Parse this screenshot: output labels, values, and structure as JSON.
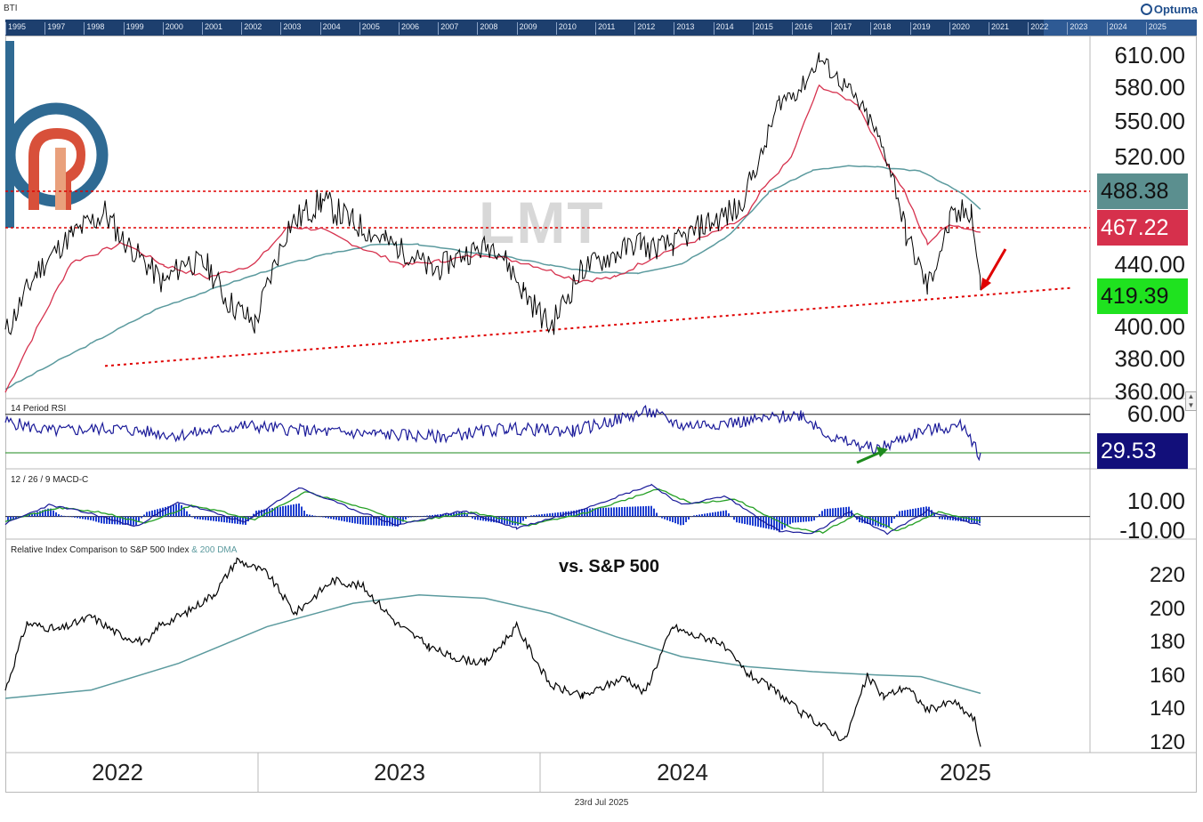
{
  "symbol": "BTI",
  "brand": "Optuma",
  "overview_years": [
    "1995",
    "1997",
    "1998",
    "1999",
    "2000",
    "2001",
    "2002",
    "2003",
    "2004",
    "2005",
    "2006",
    "2007",
    "2008",
    "2009",
    "2010",
    "2011",
    "2012",
    "2013",
    "2014",
    "2015",
    "2016",
    "2017",
    "2018",
    "2019",
    "2020",
    "2021",
    "2022",
    "2023",
    "2024",
    "2025"
  ],
  "watermark": "LMT",
  "annotation": "vs. S&P 500",
  "date": "23rd Jul 2025",
  "colors": {
    "price": "#000000",
    "sma_fast": "#d6324e",
    "sma_slow": "#5b9a9e",
    "resistance": "#e00000",
    "rsi": "#1a1a99",
    "macd_hist": "#1f3fd1",
    "macd_signal": "#25a025",
    "arrow_red": "#e00000",
    "arrow_green": "#1e8a1e",
    "box_teal": "#5b8f8f",
    "box_red": "#d6304c",
    "box_green": "#1fe21f",
    "box_navy": "#120f7a"
  },
  "x_labels": [
    "2022",
    "2023",
    "2024",
    "2025"
  ],
  "chart_data": [
    {
      "type": "line",
      "panel": "price",
      "title": "",
      "ylim": [
        360,
        620
      ],
      "y_ticks": [
        "360.00",
        "380.00",
        "400.00",
        "440.00",
        "520.00",
        "550.00",
        "580.00",
        "610.00"
      ],
      "x_start": "2021-11-01",
      "x_end": "2025-07-23",
      "series": [
        {
          "name": "price",
          "x": [
            "2021-11-01",
            "2021-12-15",
            "2022-02-01",
            "2022-03-20",
            "2022-04-15",
            "2022-06-10",
            "2022-07-10",
            "2022-08-10",
            "2022-09-05",
            "2022-10-15",
            "2022-12-01",
            "2023-01-15",
            "2023-03-01",
            "2023-04-15",
            "2023-05-25",
            "2023-06-20",
            "2023-08-01",
            "2023-09-15",
            "2023-10-25",
            "2023-12-01",
            "2024-01-15",
            "2024-03-01",
            "2024-04-05",
            "2024-04-15",
            "2024-05-20",
            "2024-07-01",
            "2024-07-20",
            "2024-08-20",
            "2024-09-20",
            "2024-10-15",
            "2024-11-15",
            "2024-12-10",
            "2025-01-20",
            "2025-02-20",
            "2025-03-15",
            "2025-04-10",
            "2025-05-10",
            "2025-06-10",
            "2025-07-10",
            "2025-07-23"
          ],
          "y": [
            396,
            436,
            462,
            476,
            458,
            428,
            443,
            440,
            418,
            402,
            468,
            483,
            470,
            458,
            446,
            436,
            448,
            455,
            423,
            400,
            438,
            448,
            458,
            452,
            455,
            468,
            472,
            478,
            520,
            568,
            580,
            608,
            578,
            550,
            518,
            462,
            425,
            470,
            479,
            424
          ]
        },
        {
          "name": "SMA fast",
          "x": [
            "2021-11-01",
            "2022-02-01",
            "2022-04-15",
            "2022-06-10",
            "2022-08-10",
            "2022-10-15",
            "2022-12-01",
            "2023-01-15",
            "2023-03-15",
            "2023-05-10",
            "2023-07-01",
            "2023-09-01",
            "2023-11-01",
            "2024-01-10",
            "2024-03-01",
            "2024-05-01",
            "2024-07-01",
            "2024-09-01",
            "2024-11-01",
            "2024-12-10",
            "2025-02-01",
            "2025-03-20",
            "2025-05-10",
            "2025-06-10",
            "2025-07-23"
          ],
          "y": [
            360,
            442,
            456,
            440,
            432,
            441,
            468,
            466,
            452,
            440,
            443,
            448,
            441,
            430,
            432,
            448,
            460,
            474,
            520,
            582,
            566,
            508,
            456,
            470,
            464
          ]
        },
        {
          "name": "SMA slow",
          "x": [
            "2021-11-01",
            "2022-03-01",
            "2022-06-01",
            "2022-09-01",
            "2022-12-01",
            "2023-02-01",
            "2023-04-01",
            "2023-06-01",
            "2023-08-01",
            "2023-10-01",
            "2023-12-01",
            "2024-02-01",
            "2024-04-01",
            "2024-06-01",
            "2024-08-01",
            "2024-10-01",
            "2024-12-01",
            "2025-01-20",
            "2025-03-01",
            "2025-05-01",
            "2025-07-23"
          ],
          "y": [
            362,
            390,
            412,
            427,
            441,
            449,
            455,
            455,
            450,
            446,
            440,
            435,
            435,
            441,
            460,
            488,
            508,
            512,
            511,
            507,
            478
          ]
        }
      ],
      "lines": [
        {
          "name": "resistance upper",
          "y": 488.38
        },
        {
          "name": "resistance lower",
          "y": 467.22
        },
        {
          "name": "trendline",
          "x": [
            "2022-03-20",
            "2025-07-23"
          ],
          "y": [
            376,
            422
          ]
        }
      ],
      "value_labels": [
        "488.38",
        "467.22",
        "419.39"
      ]
    },
    {
      "type": "line",
      "panel": "rsi",
      "title": "14 Period RSI",
      "ylim": [
        30,
        70
      ],
      "y_ticks": [
        "60.00"
      ],
      "levels": [
        60,
        30
      ],
      "series": [
        {
          "name": "RSI",
          "x": [
            "2021-11-01",
            "2022-01-01",
            "2022-04-01",
            "2022-07-01",
            "2022-10-01",
            "2023-01-01",
            "2023-04-01",
            "2023-07-01",
            "2023-10-01",
            "2024-01-01",
            "2024-04-15",
            "2024-06-01",
            "2024-09-01",
            "2024-11-15",
            "2025-01-01",
            "2025-03-01",
            "2025-05-01",
            "2025-07-01",
            "2025-07-23"
          ],
          "y": [
            55,
            48,
            50,
            45,
            52,
            48,
            46,
            44,
            50,
            48,
            62,
            52,
            55,
            60,
            42,
            35,
            48,
            52,
            29.53
          ]
        }
      ],
      "value_label": "29.53"
    },
    {
      "type": "line",
      "panel": "macd",
      "title": "12 / 26 / 9 MACD-C",
      "ylim": [
        -15,
        25
      ],
      "y_ticks": [
        "10.00",
        "-10.00"
      ],
      "series": [
        {
          "name": "MACD",
          "x": [
            "2021-11-01",
            "2022-01-01",
            "2022-03-01",
            "2022-05-01",
            "2022-07-01",
            "2022-10-01",
            "2022-12-15",
            "2023-03-01",
            "2023-05-01",
            "2023-08-01",
            "2023-10-15",
            "2024-01-01",
            "2024-04-20",
            "2024-06-01",
            "2024-08-01",
            "2024-10-15",
            "2024-12-01",
            "2025-01-20",
            "2025-03-15",
            "2025-05-10",
            "2025-07-23"
          ],
          "y": [
            -5,
            8,
            2,
            -7,
            10,
            -4,
            20,
            5,
            -6,
            4,
            -8,
            3,
            22,
            8,
            14,
            -10,
            -12,
            3,
            -12,
            4,
            -6
          ]
        },
        {
          "name": "Signal",
          "x": [
            "2021-11-01",
            "2022-01-15",
            "2022-03-15",
            "2022-05-15",
            "2022-07-20",
            "2022-10-15",
            "2022-12-25",
            "2023-03-15",
            "2023-05-15",
            "2023-08-15",
            "2023-11-01",
            "2024-01-15",
            "2024-04-30",
            "2024-06-15",
            "2024-08-15",
            "2024-11-01",
            "2024-12-15",
            "2025-02-01",
            "2025-03-30",
            "2025-05-25",
            "2025-07-23"
          ],
          "y": [
            -3,
            6,
            3,
            -5,
            8,
            -2,
            17,
            6,
            -4,
            3,
            -6,
            2,
            19,
            9,
            12,
            -8,
            -11,
            2,
            -10,
            3,
            -3
          ]
        }
      ]
    },
    {
      "type": "line",
      "panel": "relative",
      "title": "Relative Index Comparison to S&P 500 Index",
      "title_extra": "& 200 DMA",
      "ylim": [
        115,
        235
      ],
      "y_ticks": [
        "120",
        "140",
        "160",
        "180",
        "200",
        "220"
      ],
      "series": [
        {
          "name": "Relative",
          "x": [
            "2021-11-01",
            "2021-12-01",
            "2022-01-15",
            "2022-03-01",
            "2022-04-10",
            "2022-05-20",
            "2022-06-01",
            "2022-07-10",
            "2022-08-20",
            "2022-09-20",
            "2022-11-01",
            "2022-12-10",
            "2023-02-01",
            "2023-03-15",
            "2023-05-01",
            "2023-06-15",
            "2023-07-15",
            "2023-09-01",
            "2023-10-15",
            "2023-12-01",
            "2024-01-15",
            "2024-03-15",
            "2024-04-10",
            "2024-05-20",
            "2024-06-15",
            "2024-07-20",
            "2024-09-01",
            "2024-10-15",
            "2024-11-15",
            "2024-12-10",
            "2025-01-15",
            "2025-02-15",
            "2025-03-10",
            "2025-04-10",
            "2025-05-10",
            "2025-06-15",
            "2025-07-15",
            "2025-07-23"
          ],
          "y": [
            152,
            192,
            188,
            196,
            185,
            180,
            190,
            198,
            210,
            230,
            222,
            198,
            218,
            214,
            192,
            178,
            172,
            168,
            190,
            155,
            148,
            160,
            150,
            190,
            185,
            182,
            162,
            150,
            138,
            132,
            122,
            160,
            148,
            154,
            140,
            145,
            134,
            118
          ]
        },
        {
          "name": "200 DMA",
          "x": [
            "2021-11-01",
            "2022-03-01",
            "2022-07-01",
            "2022-11-01",
            "2023-03-01",
            "2023-06-01",
            "2023-09-01",
            "2023-12-01",
            "2024-03-01",
            "2024-06-01",
            "2024-09-01",
            "2024-12-01",
            "2025-03-01",
            "2025-05-01",
            "2025-07-23"
          ],
          "y": [
            147,
            152,
            168,
            190,
            204,
            209,
            207,
            198,
            184,
            172,
            166,
            163,
            161,
            160,
            150
          ]
        }
      ]
    }
  ]
}
